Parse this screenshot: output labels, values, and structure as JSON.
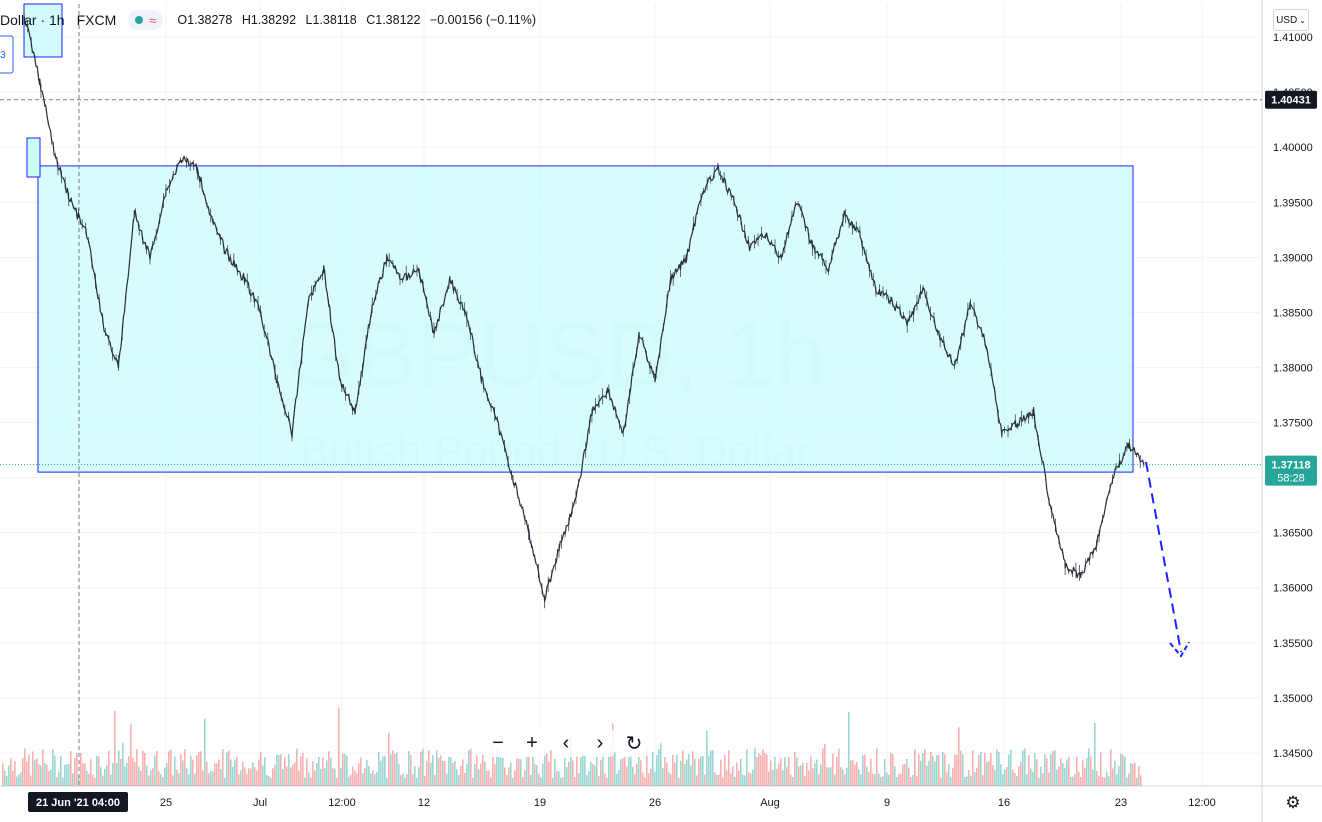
{
  "header": {
    "symbol": "Dollar · 1h",
    "exchange": "FXCM",
    "wave_glyph": "≈",
    "open": "O1.38278",
    "high": "H1.38292",
    "low": "L1.38118",
    "close": "C1.38122",
    "change": "−0.00156 (−0.11%)"
  },
  "currency_button": "USD",
  "watermark": {
    "symbol": "GBPUSD, 1h",
    "description": "British Pound / U.S. Dollar"
  },
  "left_box_label": "3",
  "price_axis": {
    "ticks": [
      "1.41000",
      "1.40500",
      "1.40000",
      "1.39500",
      "1.39000",
      "1.38500",
      "1.38000",
      "1.37500",
      "1.37000",
      "1.36500",
      "1.36000",
      "1.35500",
      "1.35000",
      "1.34500"
    ],
    "horizontal_line_label": "1.40431",
    "current_price_label": "1.37118",
    "countdown_label": "58:28"
  },
  "time_axis": {
    "ticks": [
      "25",
      "Jul",
      "12:00",
      "12",
      "19",
      "26",
      "Aug",
      "9",
      "16",
      "23",
      "12:00"
    ],
    "crosshair_label": "21 Jun '21  04:00"
  },
  "zoom_controls": {
    "zoom_out": "−",
    "zoom_in": "+",
    "scroll_left": "‹",
    "scroll_right": "›",
    "reset": "↻"
  },
  "colors": {
    "up": "#26a69a",
    "down": "#ef5350",
    "candle": "#2a2e39",
    "range_fill": "#ccfbfc",
    "range_border": "#1e22ff",
    "accent": "#2962ff"
  },
  "chart_data": {
    "type": "candlestick",
    "title": "GBPUSD, 1h",
    "subtitle": "British Pound / U.S. Dollar",
    "y_axis": "price (USD)",
    "ylim": [
      1.342,
      1.413
    ],
    "x_range": [
      "2021-06-18",
      "2021-08-27"
    ],
    "price_path": [
      [
        "2021-06-18",
        1.412
      ],
      [
        "2021-06-20",
        1.406
      ],
      [
        "2021-06-21",
        1.399
      ],
      [
        "2021-06-21",
        1.395
      ],
      [
        "2021-06-22",
        1.392
      ],
      [
        "2021-06-23",
        1.384
      ],
      [
        "2021-06-23",
        1.38
      ],
      [
        "2021-06-24",
        1.394
      ],
      [
        "2021-06-24",
        1.39
      ],
      [
        "2021-06-25",
        1.396
      ],
      [
        "2021-06-26",
        1.399
      ],
      [
        "2021-06-28",
        1.398
      ],
      [
        "2021-06-28",
        1.393
      ],
      [
        "2021-06-29",
        1.39
      ],
      [
        "2021-06-30",
        1.388
      ],
      [
        "2021-07-01",
        1.385
      ],
      [
        "2021-07-02",
        1.379
      ],
      [
        "2021-07-02",
        1.374
      ],
      [
        "2021-07-05",
        1.386
      ],
      [
        "2021-07-06",
        1.389
      ],
      [
        "2021-07-07",
        1.379
      ],
      [
        "2021-07-08",
        1.376
      ],
      [
        "2021-07-09",
        1.385
      ],
      [
        "2021-07-10",
        1.39
      ],
      [
        "2021-07-12",
        1.388
      ],
      [
        "2021-07-13",
        1.389
      ],
      [
        "2021-07-14",
        1.383
      ],
      [
        "2021-07-15",
        1.388
      ],
      [
        "2021-07-16",
        1.385
      ],
      [
        "2021-07-18",
        1.379
      ],
      [
        "2021-07-19",
        1.375
      ],
      [
        "2021-07-19",
        1.37
      ],
      [
        "2021-07-20",
        1.365
      ],
      [
        "2021-07-20",
        1.359
      ],
      [
        "2021-07-21",
        1.364
      ],
      [
        "2021-07-21",
        1.368
      ],
      [
        "2021-07-22",
        1.376
      ],
      [
        "2021-07-23",
        1.378
      ],
      [
        "2021-07-24",
        1.374
      ],
      [
        "2021-07-25",
        1.383
      ],
      [
        "2021-07-26",
        1.379
      ],
      [
        "2021-07-26",
        1.388
      ],
      [
        "2021-07-27",
        1.39
      ],
      [
        "2021-07-28",
        1.396
      ],
      [
        "2021-07-29",
        1.398
      ],
      [
        "2021-07-30",
        1.395
      ],
      [
        "2021-07-31",
        1.391
      ],
      [
        "2021-08-02",
        1.392
      ],
      [
        "2021-08-03",
        1.39
      ],
      [
        "2021-08-04",
        1.395
      ],
      [
        "2021-08-05",
        1.391
      ],
      [
        "2021-08-06",
        1.389
      ],
      [
        "2021-08-07",
        1.394
      ],
      [
        "2021-08-09",
        1.392
      ],
      [
        "2021-08-10",
        1.387
      ],
      [
        "2021-08-11",
        1.386
      ],
      [
        "2021-08-12",
        1.384
      ],
      [
        "2021-08-13",
        1.387
      ],
      [
        "2021-08-14",
        1.383
      ],
      [
        "2021-08-16",
        1.38
      ],
      [
        "2021-08-17",
        1.386
      ],
      [
        "2021-08-18",
        1.382
      ],
      [
        "2021-08-19",
        1.374
      ],
      [
        "2021-08-20",
        1.375
      ],
      [
        "2021-08-21",
        1.376
      ],
      [
        "2021-08-21",
        1.368
      ],
      [
        "2021-08-22",
        1.362
      ],
      [
        "2021-08-23",
        1.361
      ],
      [
        "2021-08-23",
        1.364
      ],
      [
        "2021-08-24",
        1.37
      ],
      [
        "2021-08-24",
        1.373
      ],
      [
        "2021-08-24",
        1.3712
      ]
    ],
    "range_box": {
      "top": 1.3983,
      "bottom": 1.3705,
      "from": "2021-06-21",
      "to": "2021-08-24"
    },
    "horizontal_line": 1.40431,
    "current_price": 1.37118,
    "projection": [
      [
        "2021-08-24",
        1.372
      ],
      [
        "2021-08-25",
        1.355
      ]
    ],
    "volume_note": "hourly volume bars, red/green"
  }
}
